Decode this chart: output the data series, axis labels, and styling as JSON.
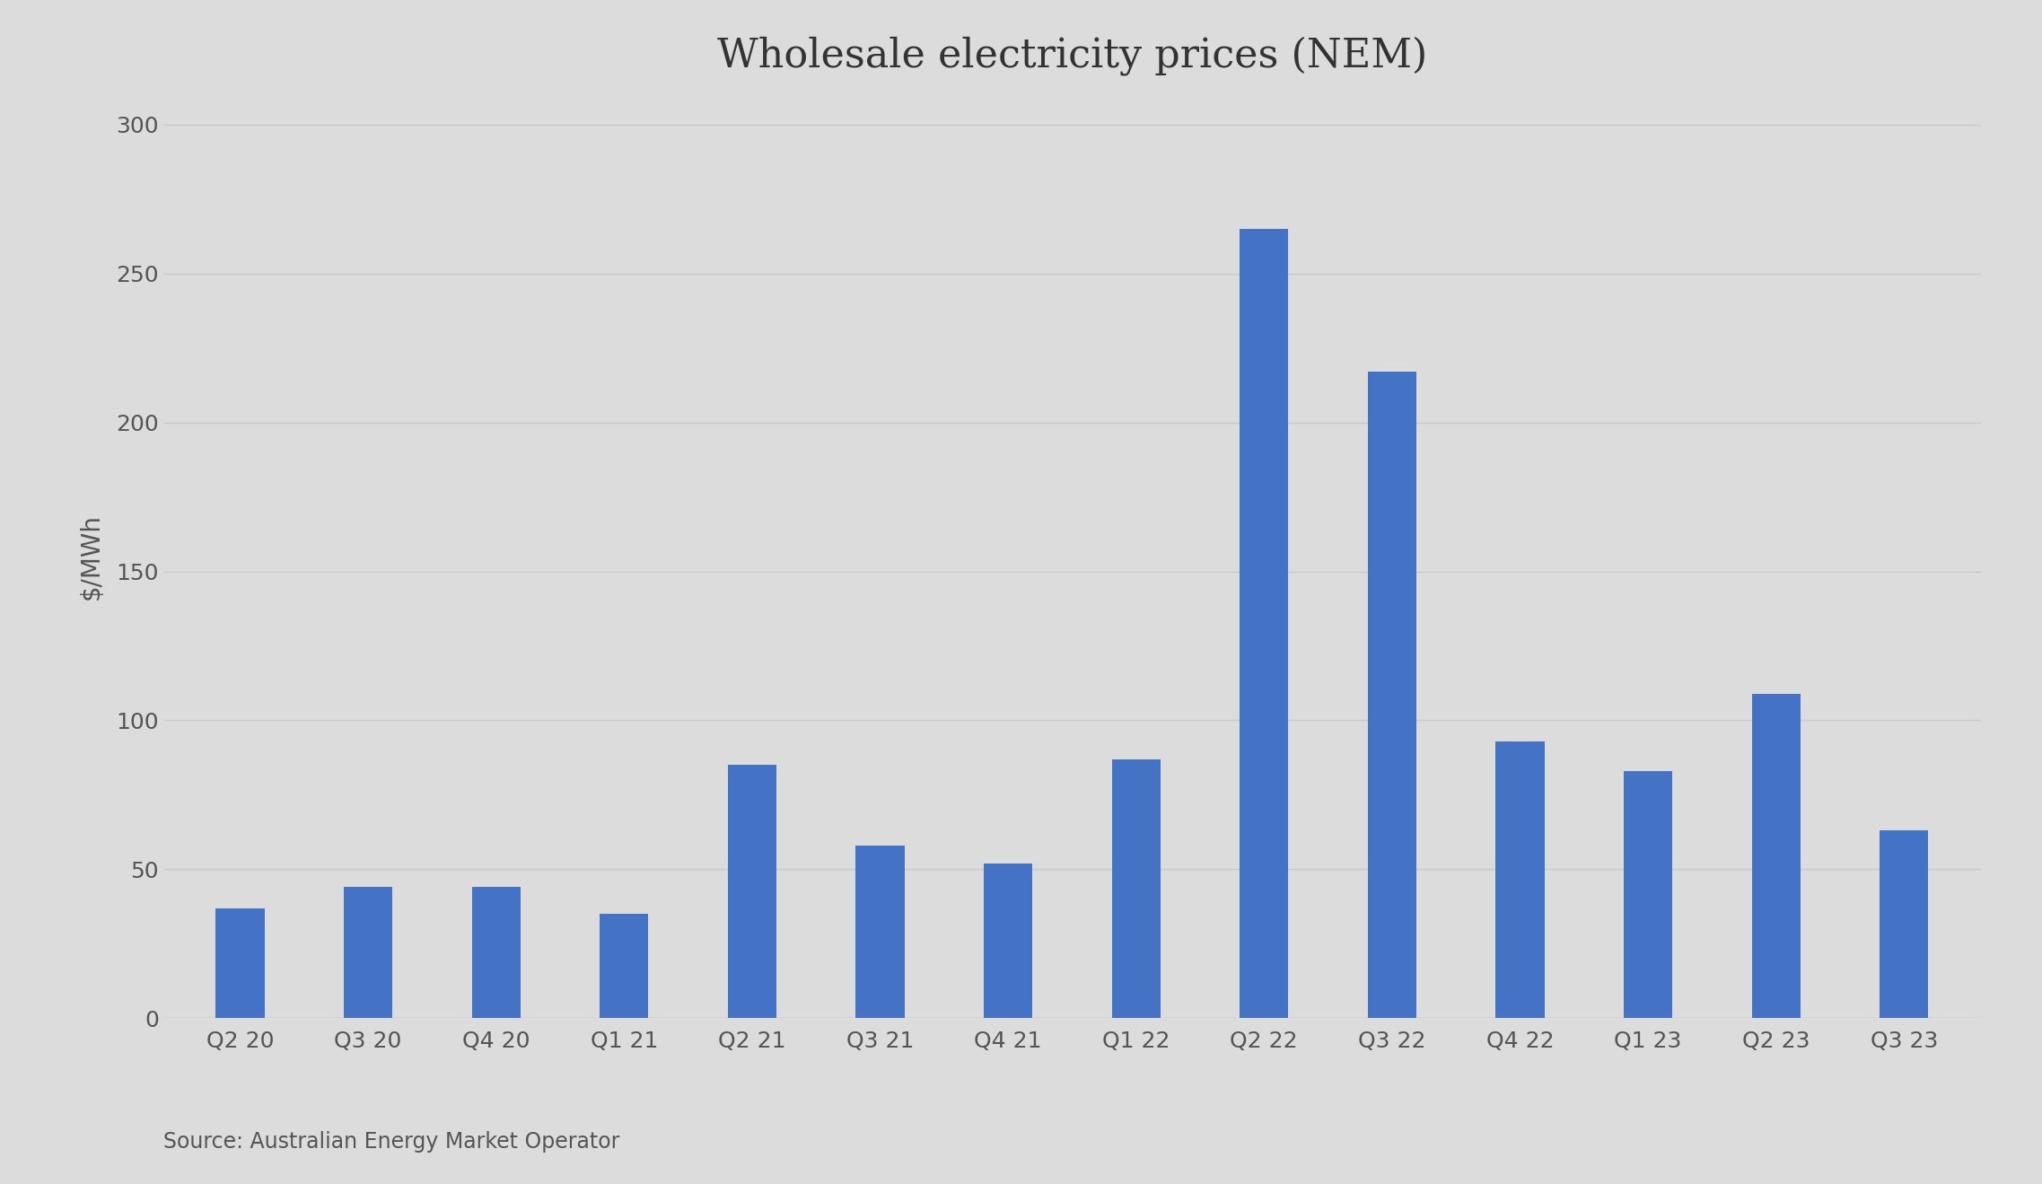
{
  "title": "Wholesale electricity prices (NEM)",
  "categories": [
    "Q2 20",
    "Q3 20",
    "Q4 20",
    "Q1 21",
    "Q2 21",
    "Q3 21",
    "Q4 21",
    "Q1 22",
    "Q2 22",
    "Q3 22",
    "Q4 22",
    "Q1 23",
    "Q2 23",
    "Q3 23"
  ],
  "values": [
    37,
    44,
    44,
    35,
    85,
    58,
    52,
    87,
    265,
    217,
    93,
    83,
    109,
    63
  ],
  "bar_color": "#4472c4",
  "ylabel": "$/MWh",
  "ylim": [
    0,
    310
  ],
  "yticks": [
    0,
    50,
    100,
    150,
    200,
    250,
    300
  ],
  "source_text": "Source: Australian Energy Market Operator",
  "background_color": "#dcdcdc",
  "title_fontsize": 32,
  "axis_label_fontsize": 20,
  "tick_fontsize": 18,
  "source_fontsize": 17,
  "bar_width": 0.38,
  "grid_color": "#c8c8c8",
  "text_color": "#555555"
}
